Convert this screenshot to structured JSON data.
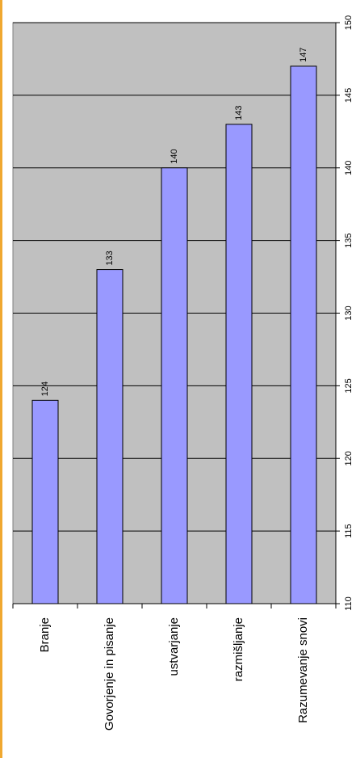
{
  "chart_data": {
    "type": "bar",
    "categories": [
      "Branje",
      "Govorjenje in pisanje",
      "ustvarjanje",
      "razmišljanje",
      "Razumevanje snovi"
    ],
    "values": [
      124,
      133,
      140,
      143,
      147
    ],
    "color": "#9999ff",
    "ylim": [
      110,
      150
    ],
    "yticks": [
      110,
      115,
      120,
      125,
      130,
      135,
      140,
      145,
      150
    ],
    "grid": true
  }
}
